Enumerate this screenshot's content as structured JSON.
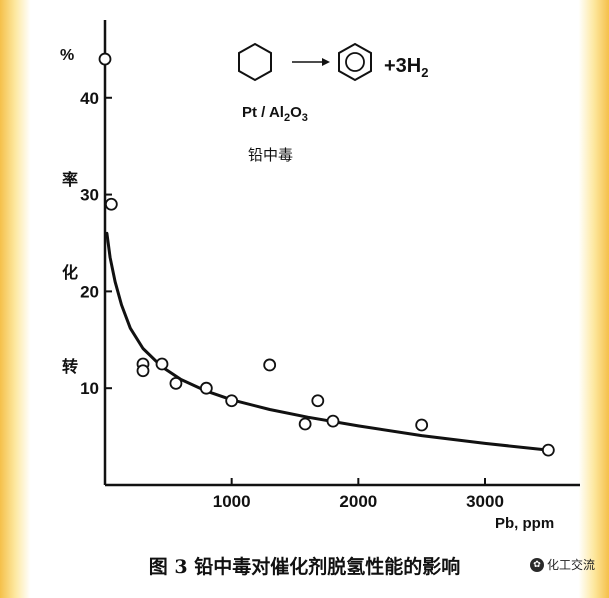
{
  "chart_data": {
    "type": "scatter",
    "ylabel_top": "%",
    "ylabel": [
      "转",
      "化",
      "率"
    ],
    "xlabel": "Pb, ppm",
    "xlim": [
      0,
      3750
    ],
    "ylim": [
      0,
      47
    ],
    "x_ticks": [
      1000,
      2000,
      3000
    ],
    "y_ticks": [
      10,
      20,
      30,
      40
    ],
    "points": [
      {
        "x": 0,
        "y": 44
      },
      {
        "x": 50,
        "y": 29
      },
      {
        "x": 300,
        "y": 12.5
      },
      {
        "x": 300,
        "y": 11.8
      },
      {
        "x": 450,
        "y": 12.5
      },
      {
        "x": 560,
        "y": 10.5
      },
      {
        "x": 800,
        "y": 10
      },
      {
        "x": 1000,
        "y": 8.7
      },
      {
        "x": 1300,
        "y": 12.4
      },
      {
        "x": 1580,
        "y": 6.3
      },
      {
        "x": 1680,
        "y": 8.7
      },
      {
        "x": 1800,
        "y": 6.6
      },
      {
        "x": 2500,
        "y": 6.2
      },
      {
        "x": 3500,
        "y": 3.6
      }
    ],
    "curve": [
      {
        "x": 15,
        "y": 26
      },
      {
        "x": 40,
        "y": 23.5
      },
      {
        "x": 80,
        "y": 21
      },
      {
        "x": 130,
        "y": 18.6
      },
      {
        "x": 200,
        "y": 16.2
      },
      {
        "x": 300,
        "y": 14.1
      },
      {
        "x": 450,
        "y": 12.2
      },
      {
        "x": 600,
        "y": 10.9
      },
      {
        "x": 800,
        "y": 9.7
      },
      {
        "x": 1000,
        "y": 8.8
      },
      {
        "x": 1300,
        "y": 7.8
      },
      {
        "x": 1600,
        "y": 7.0
      },
      {
        "x": 2000,
        "y": 6.1
      },
      {
        "x": 2500,
        "y": 5.1
      },
      {
        "x": 3000,
        "y": 4.3
      },
      {
        "x": 3500,
        "y": 3.6
      }
    ],
    "reaction": {
      "arrow": "→",
      "plus_h2": "+3H",
      "h2_sub": "2",
      "catalyst_main": "Pt / Al",
      "catalyst_sub1": "2",
      "catalyst_o": "O",
      "catalyst_sub2": "3",
      "note": "铅中毒"
    }
  },
  "caption": "图 3  铅中毒对催化剂脱氢性能的影响",
  "watermark": "化工交流",
  "colors": {
    "ink": "#111111",
    "border_gold": "#f5c04a"
  }
}
